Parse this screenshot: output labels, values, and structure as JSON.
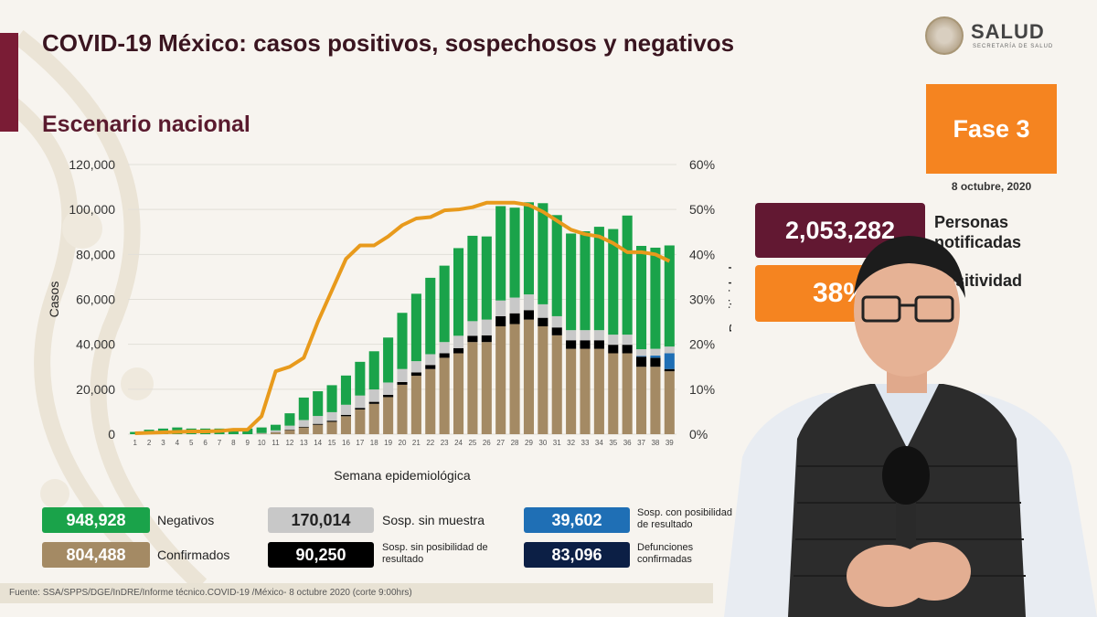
{
  "title": "COVID-19 México: casos positivos, sospechosos y negativos",
  "subtitle": "Escenario nacional",
  "logo": {
    "text": "SALUD",
    "subtext": "SECRETARÍA DE SALUD"
  },
  "phase": {
    "label": "Fase 3",
    "date": "8 octubre, 2020"
  },
  "stats": [
    {
      "value": "2,053,282",
      "label_line1": "Personas",
      "label_line2": "notificadas",
      "color": "#621832"
    },
    {
      "value": "38%",
      "label_line1": "Positividad",
      "color": "#f58420"
    }
  ],
  "legend": [
    {
      "value": "948,928",
      "label": "Negativos",
      "color": "#1aa34a"
    },
    {
      "value": "804,488",
      "label": "Confirmados",
      "color": "#a48a64"
    },
    {
      "value": "170,014",
      "label": "Sosp. sin muestra",
      "color": "#c8c8c8"
    },
    {
      "value": "90,250",
      "label": "Sosp. sin posibilidad de resultado",
      "color": "#000000"
    },
    {
      "value": "39,602",
      "label": "Sosp. con posibilidad de resultado",
      "color": "#1f6fb5"
    },
    {
      "value": "83,096",
      "label": "Defunciones confirmadas",
      "color": "#0c1f45"
    }
  ],
  "source": "Fuente: SSA/SPPS/DGE/InDRE/Informe técnico.COVID-19 /México- 8 octubre 2020 (corte 9:00hrs)",
  "chart_data": {
    "type": "bar",
    "xlabel": "Semana epidemiológica",
    "ylabel": "Casos",
    "y2label": "Positividad",
    "ylim": [
      0,
      120000
    ],
    "y2lim": [
      0,
      60
    ],
    "yticks": [
      "0",
      "20,000",
      "40,000",
      "60,000",
      "80,000",
      "100,000",
      "120,000"
    ],
    "y2ticks": [
      "0%",
      "10%",
      "20%",
      "30%",
      "40%",
      "50%",
      "60%"
    ],
    "categories": [
      "1",
      "2",
      "3",
      "4",
      "5",
      "6",
      "7",
      "8",
      "9",
      "10",
      "11",
      "12",
      "13",
      "14",
      "15",
      "16",
      "17",
      "18",
      "19",
      "20",
      "21",
      "22",
      "23",
      "24",
      "25",
      "26",
      "27",
      "28",
      "29",
      "30",
      "31",
      "32",
      "33",
      "34",
      "35",
      "36",
      "37",
      "38",
      "39"
    ],
    "series": [
      {
        "name": "Confirmados",
        "color": "#a48a64",
        "values": [
          0,
          0,
          0,
          0,
          0,
          0,
          0,
          0,
          0,
          200,
          800,
          1800,
          3000,
          4200,
          5500,
          8000,
          11000,
          13500,
          16500,
          22000,
          26000,
          29000,
          34000,
          36000,
          41000,
          41000,
          48000,
          49000,
          51000,
          48000,
          44000,
          38000,
          38000,
          38000,
          36000,
          36000,
          30000,
          30000,
          28000
        ]
      },
      {
        "name": "Sosp. sin posibilidad de resultado",
        "color": "#000000",
        "values": [
          0,
          0,
          0,
          0,
          0,
          0,
          0,
          0,
          0,
          0,
          100,
          200,
          300,
          400,
          500,
          600,
          700,
          900,
          1000,
          1200,
          1500,
          1800,
          2000,
          2300,
          2800,
          3000,
          4500,
          4800,
          4200,
          3800,
          3500,
          3800,
          3800,
          3800,
          3800,
          3800,
          4500,
          4000,
          1000
        ]
      },
      {
        "name": "Sosp. con posibilidad de resultado",
        "color": "#1f6fb5",
        "values": [
          0,
          0,
          0,
          0,
          0,
          0,
          0,
          0,
          0,
          0,
          0,
          0,
          0,
          0,
          0,
          0,
          0,
          0,
          0,
          0,
          0,
          0,
          0,
          0,
          0,
          0,
          0,
          0,
          0,
          0,
          0,
          0,
          0,
          0,
          0,
          0,
          300,
          1000,
          7000
        ]
      },
      {
        "name": "Sosp. sin muestra",
        "color": "#c8c8c8",
        "values": [
          0,
          0,
          0,
          0,
          0,
          0,
          0,
          0,
          0,
          300,
          800,
          1800,
          3000,
          3500,
          3800,
          4500,
          5500,
          5500,
          5500,
          5800,
          5000,
          4800,
          5000,
          5500,
          6500,
          7000,
          7000,
          7000,
          7000,
          6000,
          5000,
          4500,
          4500,
          4500,
          4500,
          4500,
          3000,
          3000,
          3000
        ]
      },
      {
        "name": "Negativos",
        "color": "#1aa34a",
        "values": [
          1000,
          2000,
          2500,
          3000,
          2500,
          2500,
          2500,
          2500,
          2500,
          2500,
          2500,
          5500,
          10000,
          11000,
          12000,
          13000,
          15000,
          17000,
          20000,
          25000,
          30000,
          34000,
          34000,
          39000,
          38000,
          37000,
          42000,
          40000,
          41000,
          45000,
          45000,
          43000,
          44000,
          46000,
          47000,
          53000,
          46000,
          45000,
          45000
        ]
      }
    ],
    "positividad": [
      0.2,
      0.3,
      0.4,
      0.5,
      0.6,
      0.6,
      0.7,
      1.0,
      1.0,
      4.0,
      14.0,
      15.0,
      17.0,
      25.0,
      32.0,
      39.0,
      42.0,
      42.0,
      44.0,
      46.5,
      48.0,
      48.3,
      49.8,
      50.0,
      50.5,
      51.5,
      51.5,
      51.5,
      51.0,
      49.5,
      47.5,
      45.5,
      44.5,
      44.0,
      42.5,
      40.5,
      40.5,
      40.0,
      38.5
    ]
  }
}
